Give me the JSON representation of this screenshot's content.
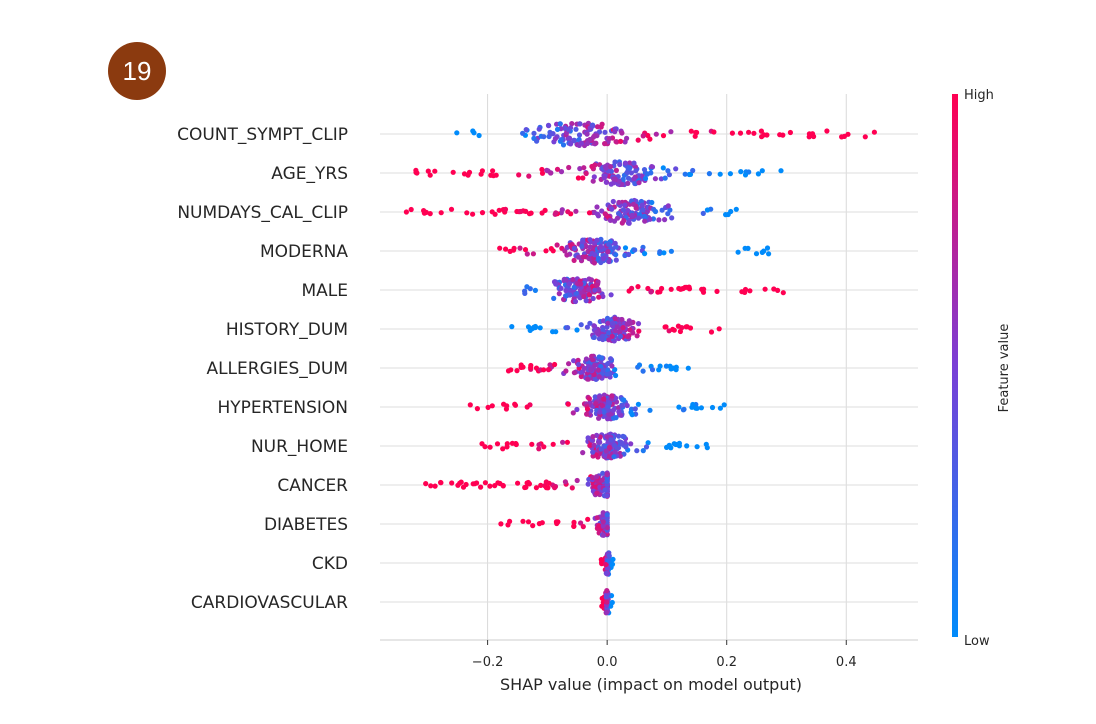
{
  "slide": {
    "number": "19",
    "badge_color": "#8b3a0f"
  },
  "chart_data": {
    "type": "scatter",
    "subtype": "shap-beeswarm",
    "xlabel": "SHAP value (impact on model output)",
    "xlim": [
      -0.38,
      0.52
    ],
    "xticks": [
      -0.2,
      0.0,
      0.2,
      0.4
    ],
    "xtick_labels": [
      "−0.2",
      "0.0",
      "0.2",
      "0.4"
    ],
    "grid": true,
    "colorbar": {
      "label": "Feature value",
      "high_label": "High",
      "low_label": "Low",
      "low_color": "#008bfb",
      "high_color": "#ff0052"
    },
    "features": [
      {
        "name": "COUNT_SYMPT_CLIP",
        "min": -0.28,
        "max": 0.48,
        "center": -0.04,
        "low_side": "left"
      },
      {
        "name": "AGE_YRS",
        "min": -0.32,
        "max": 0.3,
        "center": 0.02,
        "low_side": "right"
      },
      {
        "name": "NUMDAYS_CAL_CLIP",
        "min": -0.35,
        "max": 0.22,
        "center": 0.04,
        "low_side": "right"
      },
      {
        "name": "MODERNA",
        "min": -0.18,
        "max": 0.29,
        "center": -0.02,
        "low_side": "right"
      },
      {
        "name": "MALE",
        "min": -0.14,
        "max": 0.3,
        "center": -0.05,
        "low_side": "left"
      },
      {
        "name": "HISTORY_DUM",
        "min": -0.16,
        "max": 0.19,
        "center": 0.01,
        "low_side": "left"
      },
      {
        "name": "ALLERGIES_DUM",
        "min": -0.18,
        "max": 0.17,
        "center": -0.02,
        "low_side": "right"
      },
      {
        "name": "HYPERTENSION",
        "min": -0.23,
        "max": 0.22,
        "center": 0.0,
        "low_side": "right"
      },
      {
        "name": "NUR_HOME",
        "min": -0.21,
        "max": 0.17,
        "center": 0.0,
        "low_side": "right"
      },
      {
        "name": "CANCER",
        "min": -0.31,
        "max": 0.0,
        "center": 0.0,
        "low_side": "right"
      },
      {
        "name": "DIABETES",
        "min": -0.19,
        "max": 0.0,
        "center": 0.0,
        "low_side": "right"
      },
      {
        "name": "CKD",
        "min": -0.01,
        "max": 0.01,
        "center": 0.0,
        "low_side": "right"
      },
      {
        "name": "CARDIOVASCULAR",
        "min": -0.01,
        "max": 0.01,
        "center": 0.0,
        "low_side": "right"
      }
    ]
  }
}
